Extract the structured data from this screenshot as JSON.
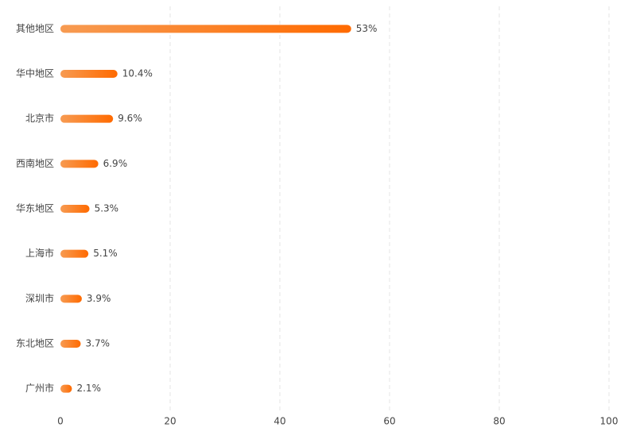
{
  "chart_data": {
    "type": "hbar",
    "categories": [
      "其他地区",
      "华中地区",
      "北京市",
      "西南地区",
      "华东地区",
      "上海市",
      "深圳市",
      "东北地区",
      "广州市"
    ],
    "values": [
      53,
      10.4,
      9.6,
      6.9,
      5.3,
      5.1,
      3.9,
      3.7,
      2.1
    ],
    "value_labels": [
      "53%",
      "10.4%",
      "9.6%",
      "6.9%",
      "5.3%",
      "5.1%",
      "3.9%",
      "3.7%",
      "2.1%"
    ],
    "colors": [
      "#f79b52",
      "#ff6a00"
    ],
    "label_color": "#e8701a",
    "xlim": [
      0,
      100
    ],
    "xticks": [
      0,
      20,
      40,
      60,
      80,
      100
    ],
    "grid": true
  }
}
